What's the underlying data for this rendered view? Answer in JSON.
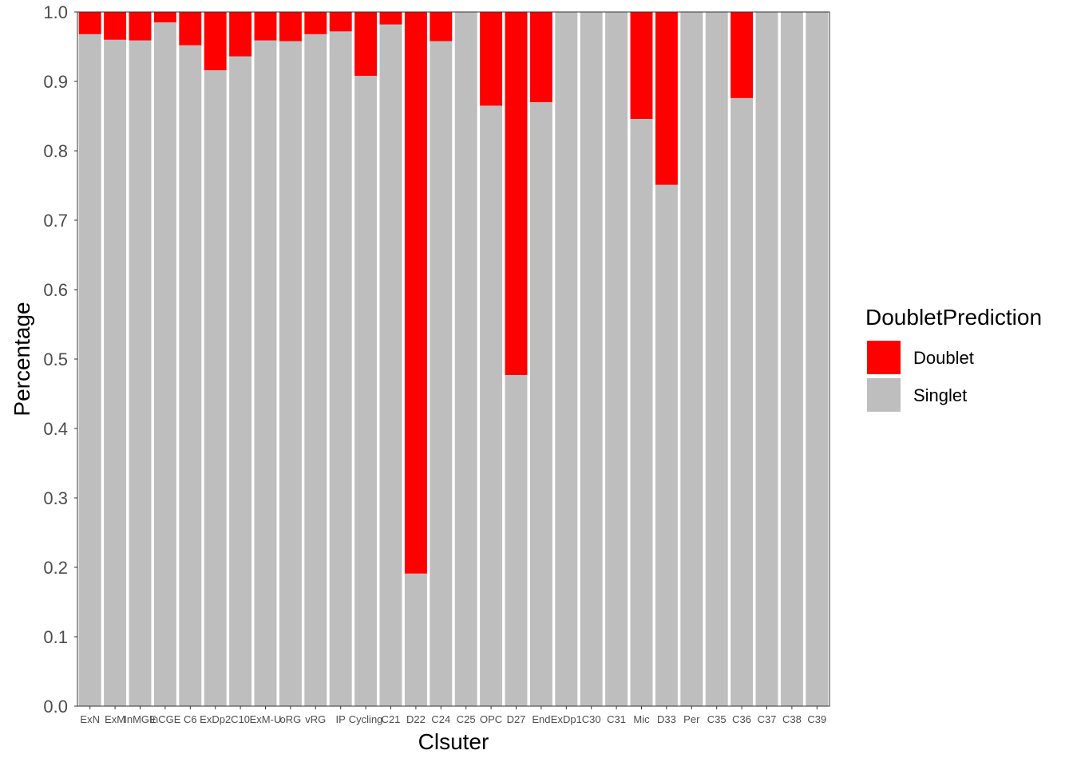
{
  "chart_data": {
    "type": "bar",
    "stacked": true,
    "categories": [
      "ExN",
      "ExM",
      "InMGE",
      "InCGE",
      "C6",
      "ExDp2",
      "C10",
      "ExM-U",
      "oRG",
      "vRG",
      "IP",
      "Cycling",
      "C21",
      "D22",
      "C24",
      "C25",
      "OPC",
      "D27",
      "End",
      "ExDp1",
      "C30",
      "C31",
      "Mic",
      "D33",
      "Per",
      "C35",
      "C36",
      "C37",
      "C38",
      "C39"
    ],
    "series": [
      {
        "name": "Singlet",
        "color": "#bebebe",
        "values": [
          0.968,
          0.96,
          0.959,
          0.985,
          0.952,
          0.916,
          0.936,
          0.959,
          0.958,
          0.968,
          0.972,
          0.908,
          0.982,
          0.191,
          0.958,
          1.0,
          0.865,
          0.477,
          0.87,
          1.0,
          1.0,
          1.0,
          0.846,
          0.751,
          1.0,
          1.0,
          0.876,
          1.0,
          1.0,
          1.0
        ]
      },
      {
        "name": "Doublet",
        "color": "#ff0000",
        "values": [
          0.032,
          0.04,
          0.041,
          0.015,
          0.048,
          0.084,
          0.064,
          0.041,
          0.042,
          0.032,
          0.028,
          0.092,
          0.018,
          0.809,
          0.042,
          0.0,
          0.135,
          0.523,
          0.13,
          0.0,
          0.0,
          0.0,
          0.154,
          0.249,
          0.0,
          0.0,
          0.124,
          0.0,
          0.0,
          0.0
        ]
      }
    ],
    "xlabel": "Clsuter",
    "ylabel": "Percentage",
    "ylim": [
      0,
      1
    ],
    "yticks": [
      "0.0",
      "0.1",
      "0.2",
      "0.3",
      "0.4",
      "0.5",
      "0.6",
      "0.7",
      "0.8",
      "0.9",
      "1.0"
    ],
    "grid": false,
    "legend": {
      "title": "DoubletPrediction",
      "placement": "right",
      "entries": [
        {
          "label": "Doublet",
          "color": "#ff0000"
        },
        {
          "label": "Singlet",
          "color": "#bebebe"
        }
      ]
    }
  }
}
